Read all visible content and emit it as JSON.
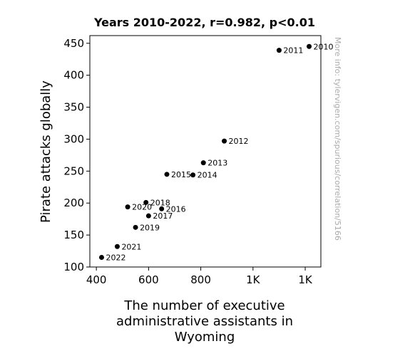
{
  "chart_data": {
    "type": "scatter",
    "title": "Years 2010-2022, r=0.982, p<0.01",
    "xlabel": "The number of executive administrative assistants in Wyoming",
    "ylabel": "Pirate attacks globally",
    "xlim": [
      375,
      1260
    ],
    "ylim": [
      100,
      462
    ],
    "xticks": [
      400,
      600,
      800,
      1000,
      1200
    ],
    "xtick_labels": [
      "400",
      "600",
      "800",
      "1K",
      "1K"
    ],
    "yticks": [
      100,
      150,
      200,
      250,
      300,
      350,
      400,
      450
    ],
    "grid": false,
    "marker_color": "#000000",
    "points": [
      {
        "label": "2010",
        "x": 1215,
        "y": 445
      },
      {
        "label": "2011",
        "x": 1100,
        "y": 439
      },
      {
        "label": "2012",
        "x": 890,
        "y": 297
      },
      {
        "label": "2013",
        "x": 810,
        "y": 263
      },
      {
        "label": "2014",
        "x": 770,
        "y": 244
      },
      {
        "label": "2015",
        "x": 670,
        "y": 245
      },
      {
        "label": "2016",
        "x": 650,
        "y": 191
      },
      {
        "label": "2017",
        "x": 600,
        "y": 180
      },
      {
        "label": "2018",
        "x": 590,
        "y": 201
      },
      {
        "label": "2019",
        "x": 550,
        "y": 162
      },
      {
        "label": "2020",
        "x": 520,
        "y": 194
      },
      {
        "label": "2021",
        "x": 480,
        "y": 132
      },
      {
        "label": "2022",
        "x": 420,
        "y": 115
      }
    ]
  },
  "watermark": "More info: tylervigen.com/spurious/correlation/5166"
}
